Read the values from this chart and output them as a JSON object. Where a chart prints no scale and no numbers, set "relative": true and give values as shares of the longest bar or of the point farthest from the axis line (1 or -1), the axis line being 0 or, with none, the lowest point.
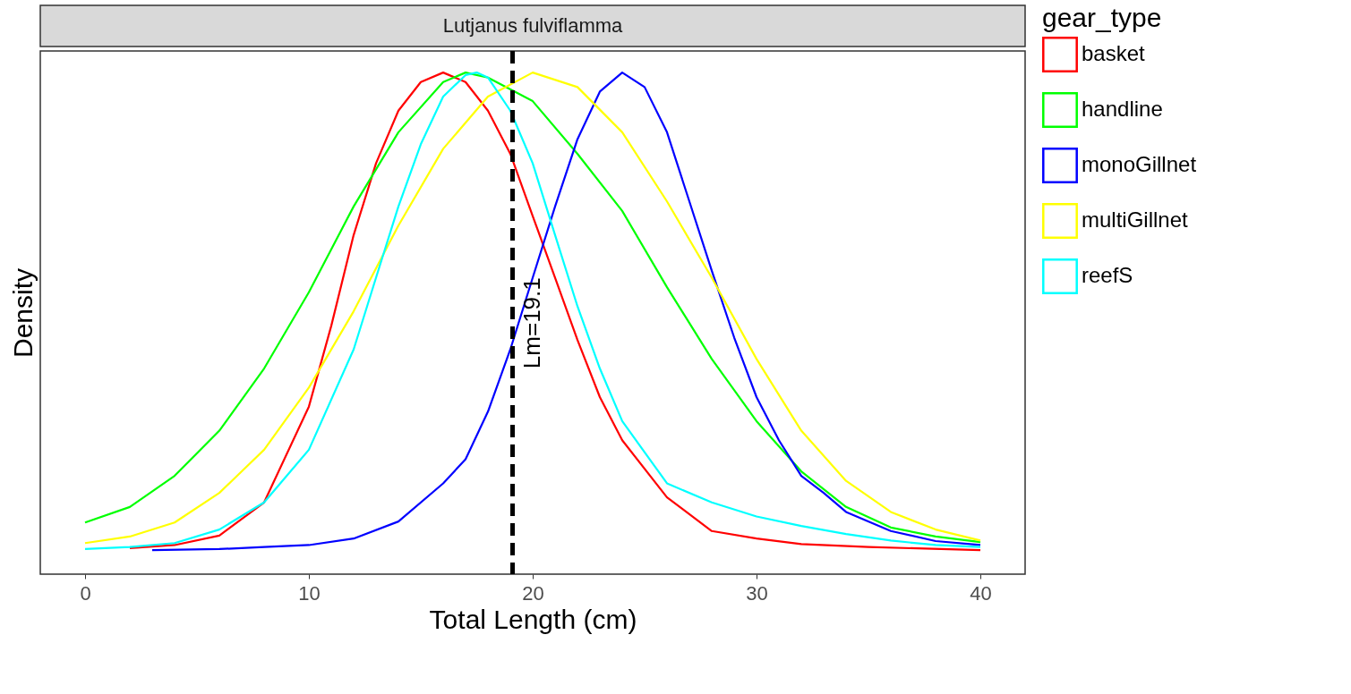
{
  "chart_data": {
    "type": "line",
    "title": "Lutjanus fulviflamma",
    "xlabel": "Total Length (cm)",
    "ylabel": "Density",
    "legend_title": "gear_type",
    "relative": true,
    "xlim": [
      -2,
      42
    ],
    "xticks": [
      0,
      10,
      20,
      30,
      40
    ],
    "grid": false,
    "legend": "right",
    "marker": "none",
    "line_style": "solid",
    "ref_lines": [
      {
        "axis": "x",
        "value": 19.1,
        "label": "Lm=19.1",
        "color": "#000000",
        "line_style": "dashed"
      }
    ],
    "series": [
      {
        "name": "basket",
        "color": "#ff0000",
        "x": [
          2,
          4,
          6,
          8,
          10,
          11,
          12,
          13,
          14,
          15,
          16,
          17,
          18,
          19,
          20,
          21,
          22,
          23,
          24,
          26,
          28,
          30,
          32,
          35,
          40
        ],
        "values": [
          0.052,
          0.058,
          0.077,
          0.143,
          0.334,
          0.495,
          0.676,
          0.819,
          0.924,
          0.981,
          1.0,
          0.981,
          0.924,
          0.838,
          0.714,
          0.591,
          0.467,
          0.353,
          0.267,
          0.153,
          0.086,
          0.071,
          0.06,
          0.054,
          0.048
        ]
      },
      {
        "name": "handline",
        "color": "#00ff00",
        "x": [
          0,
          2,
          4,
          6,
          8,
          10,
          12,
          14,
          16,
          17,
          18,
          20,
          22,
          24,
          26,
          28,
          30,
          32,
          34,
          36,
          38,
          40
        ],
        "values": [
          0.103,
          0.134,
          0.196,
          0.286,
          0.41,
          0.562,
          0.733,
          0.881,
          0.981,
          1.0,
          0.99,
          0.943,
          0.838,
          0.724,
          0.572,
          0.429,
          0.305,
          0.205,
          0.134,
          0.093,
          0.075,
          0.064
        ]
      },
      {
        "name": "monoGillnet",
        "color": "#0000ff",
        "x": [
          3,
          6,
          8,
          10,
          12,
          14,
          16,
          17,
          18,
          19,
          20,
          21,
          22,
          23,
          24,
          25,
          26,
          27,
          28,
          29,
          30,
          31,
          32,
          33,
          34,
          36,
          38,
          40
        ],
        "values": [
          0.048,
          0.05,
          0.054,
          0.058,
          0.071,
          0.105,
          0.181,
          0.229,
          0.324,
          0.448,
          0.591,
          0.733,
          0.867,
          0.962,
          1.0,
          0.971,
          0.881,
          0.743,
          0.605,
          0.472,
          0.353,
          0.267,
          0.196,
          0.162,
          0.124,
          0.086,
          0.066,
          0.058
        ]
      },
      {
        "name": "multiGillnet",
        "color": "#ffff00",
        "x": [
          0,
          2,
          4,
          6,
          8,
          10,
          12,
          14,
          16,
          18,
          20,
          22,
          24,
          26,
          28,
          30,
          32,
          34,
          36,
          38,
          40
        ],
        "values": [
          0.062,
          0.075,
          0.103,
          0.162,
          0.248,
          0.372,
          0.524,
          0.695,
          0.848,
          0.952,
          1.0,
          0.971,
          0.881,
          0.743,
          0.591,
          0.429,
          0.286,
          0.186,
          0.124,
          0.089,
          0.067
        ]
      },
      {
        "name": "reefS",
        "color": "#00ffff",
        "x": [
          0,
          2,
          4,
          6,
          8,
          10,
          12,
          13,
          14,
          15,
          16,
          17,
          17.5,
          18,
          19,
          20,
          21,
          22,
          23,
          24,
          26,
          28,
          30,
          32,
          34,
          36,
          38,
          40
        ],
        "values": [
          0.05,
          0.054,
          0.062,
          0.089,
          0.143,
          0.248,
          0.448,
          0.591,
          0.733,
          0.857,
          0.952,
          0.995,
          1.0,
          0.99,
          0.924,
          0.819,
          0.676,
          0.534,
          0.41,
          0.305,
          0.181,
          0.143,
          0.115,
          0.096,
          0.08,
          0.067,
          0.058,
          0.054
        ]
      }
    ]
  }
}
